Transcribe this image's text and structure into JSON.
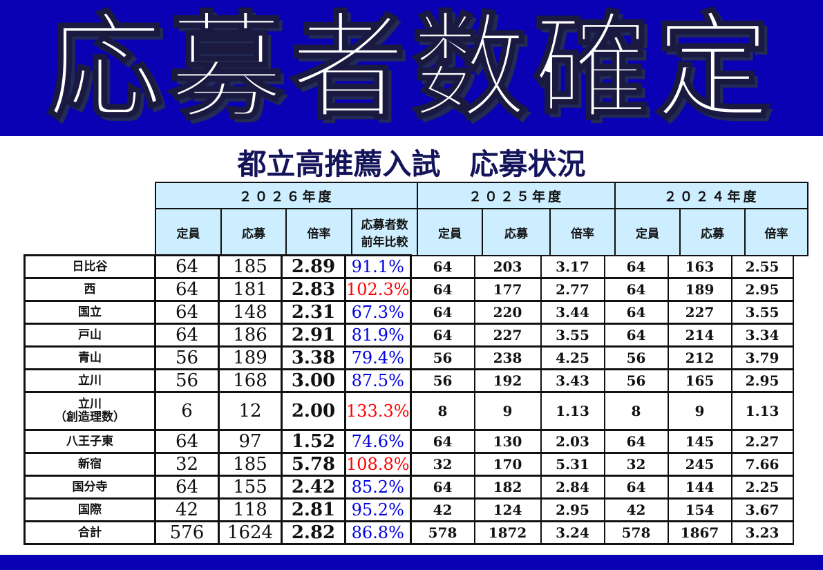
{
  "title": "応募者数確定",
  "subtitle": "都立高推薦入試　応募状況",
  "colors": {
    "banner": "#0a00b4",
    "header_bg": "#cdeeff",
    "increase": "#ff0000",
    "decrease": "#0000e0",
    "subtitle": "#14145a"
  },
  "years": [
    "２０２６年度",
    "２０２５年度",
    "２０２４年度"
  ],
  "sub_headers_2026": [
    "定員",
    "応募",
    "倍率",
    "応募者数\n前年比較"
  ],
  "sub_headers_prev": [
    "定員",
    "応募",
    "倍率"
  ],
  "rows": [
    {
      "name": "日比谷",
      "y2026": [
        "64",
        "185",
        "2.89",
        "91.1%"
      ],
      "y2025": [
        "64",
        "203",
        "3.17"
      ],
      "y2024": [
        "64",
        "163",
        "2.55"
      ],
      "up": false
    },
    {
      "name": "西",
      "y2026": [
        "64",
        "181",
        "2.83",
        "102.3%"
      ],
      "y2025": [
        "64",
        "177",
        "2.77"
      ],
      "y2024": [
        "64",
        "189",
        "2.95"
      ],
      "up": true
    },
    {
      "name": "国立",
      "y2026": [
        "64",
        "148",
        "2.31",
        "67.3%"
      ],
      "y2025": [
        "64",
        "220",
        "3.44"
      ],
      "y2024": [
        "64",
        "227",
        "3.55"
      ],
      "up": false
    },
    {
      "name": "戸山",
      "y2026": [
        "64",
        "186",
        "2.91",
        "81.9%"
      ],
      "y2025": [
        "64",
        "227",
        "3.55"
      ],
      "y2024": [
        "64",
        "214",
        "3.34"
      ],
      "up": false
    },
    {
      "name": "青山",
      "y2026": [
        "56",
        "189",
        "3.38",
        "79.4%"
      ],
      "y2025": [
        "56",
        "238",
        "4.25"
      ],
      "y2024": [
        "56",
        "212",
        "3.79"
      ],
      "up": false
    },
    {
      "name": "立川",
      "y2026": [
        "56",
        "168",
        "3.00",
        "87.5%"
      ],
      "y2025": [
        "56",
        "192",
        "3.43"
      ],
      "y2024": [
        "56",
        "165",
        "2.95"
      ],
      "up": false
    },
    {
      "name": "立川\n（創造理数）",
      "y2026": [
        "6",
        "12",
        "2.00",
        "133.3%"
      ],
      "y2025": [
        "8",
        "9",
        "1.13"
      ],
      "y2024": [
        "8",
        "9",
        "1.13"
      ],
      "up": true
    },
    {
      "name": "八王子東",
      "y2026": [
        "64",
        "97",
        "1.52",
        "74.6%"
      ],
      "y2025": [
        "64",
        "130",
        "2.03"
      ],
      "y2024": [
        "64",
        "145",
        "2.27"
      ],
      "up": false
    },
    {
      "name": "新宿",
      "y2026": [
        "32",
        "185",
        "5.78",
        "108.8%"
      ],
      "y2025": [
        "32",
        "170",
        "5.31"
      ],
      "y2024": [
        "32",
        "245",
        "7.66"
      ],
      "up": true
    },
    {
      "name": "国分寺",
      "y2026": [
        "64",
        "155",
        "2.42",
        "85.2%"
      ],
      "y2025": [
        "64",
        "182",
        "2.84"
      ],
      "y2024": [
        "64",
        "144",
        "2.25"
      ],
      "up": false
    },
    {
      "name": "国際",
      "y2026": [
        "42",
        "118",
        "2.81",
        "95.2%"
      ],
      "y2025": [
        "42",
        "124",
        "2.95"
      ],
      "y2024": [
        "42",
        "154",
        "3.67"
      ],
      "up": false
    },
    {
      "name": "合計",
      "y2026": [
        "576",
        "1624",
        "2.82",
        "86.8%"
      ],
      "y2025": [
        "578",
        "1872",
        "3.24"
      ],
      "y2024": [
        "578",
        "1867",
        "3.23"
      ],
      "up": false
    }
  ]
}
